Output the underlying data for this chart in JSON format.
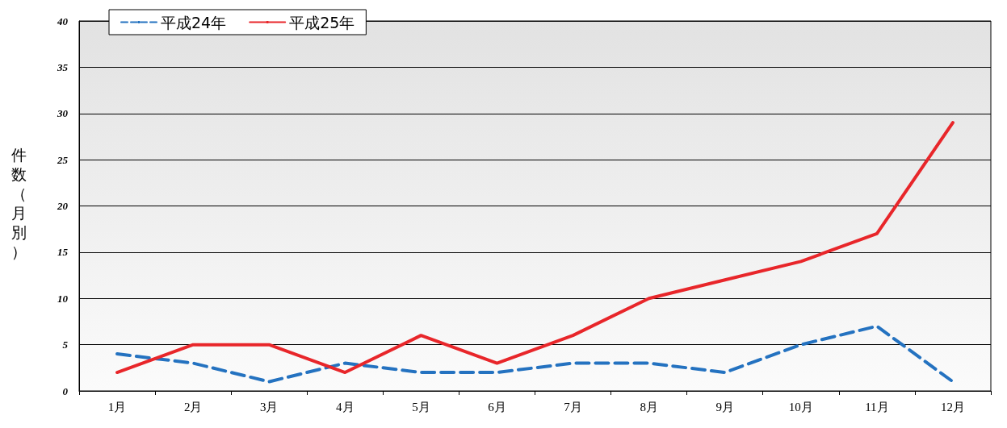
{
  "chart_data": {
    "type": "line",
    "ylabel": "件数（月別）",
    "categories": [
      "1月",
      "2月",
      "3月",
      "4月",
      "5月",
      "6月",
      "7月",
      "8月",
      "9月",
      "10月",
      "11月",
      "12月"
    ],
    "series": [
      {
        "name": "平成24年",
        "color": "#2472c0",
        "line_style": "dashed",
        "values": [
          4,
          3,
          1,
          3,
          2,
          2,
          3,
          3,
          2,
          5,
          7,
          1
        ]
      },
      {
        "name": "平成25年",
        "color": "#e8262a",
        "line_style": "solid",
        "values": [
          2,
          5,
          5,
          2,
          6,
          3,
          6,
          10,
          12,
          14,
          17,
          29
        ]
      }
    ],
    "ylim": [
      0,
      40
    ],
    "yticks": [
      0,
      5,
      10,
      15,
      20,
      25,
      30,
      35,
      40
    ],
    "grid": "y",
    "legend": "top left",
    "marker": "none"
  }
}
